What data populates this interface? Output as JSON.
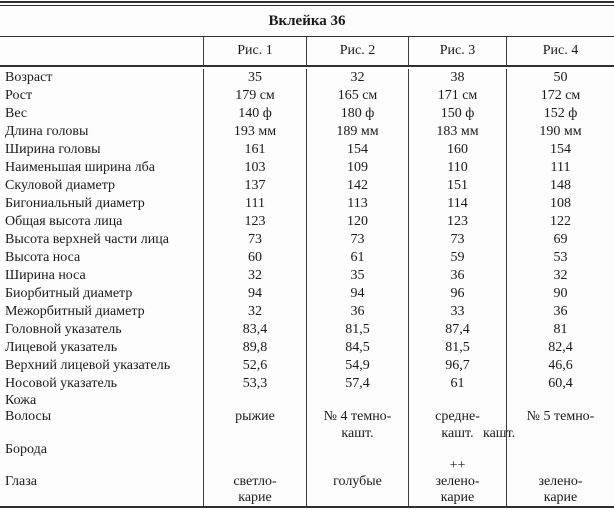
{
  "title": "Вклейка 36",
  "colors": {
    "rule": "#2f2f2f",
    "text": "#1a1a1a",
    "background": "#fdfdfd"
  },
  "table": {
    "column_headers": [
      "Рис. 1",
      "Рис. 2",
      "Рис. 3",
      "Рис. 4"
    ],
    "rows": [
      {
        "label": "Возраст",
        "values": [
          "35",
          "32",
          "38",
          "50"
        ]
      },
      {
        "label": "Рост",
        "values": [
          "179 см",
          "165 см",
          "171 см",
          "172 см"
        ]
      },
      {
        "label": "Вес",
        "values": [
          "140 ф",
          "180 ф",
          "150 ф",
          "152 ф"
        ]
      },
      {
        "label": "Длина головы",
        "values": [
          "193 мм",
          "189 мм",
          "183 мм",
          "190 мм"
        ]
      },
      {
        "label": "Ширина головы",
        "values": [
          "161",
          "154",
          "160",
          "154"
        ]
      },
      {
        "label": "Наименьшая ширина лба",
        "values": [
          "103",
          "109",
          "110",
          "111"
        ]
      },
      {
        "label": "Скуловой диаметр",
        "values": [
          "137",
          "142",
          "151",
          "148"
        ]
      },
      {
        "label": "Бигониальный диаметр",
        "values": [
          "111",
          "113",
          "114",
          "108"
        ]
      },
      {
        "label": "Общая высота лица",
        "values": [
          "123",
          "120",
          "123",
          "122"
        ]
      },
      {
        "label": "Высота верхней части лица",
        "values": [
          "73",
          "73",
          "73",
          "69"
        ]
      },
      {
        "label": "Высота носа",
        "values": [
          "60",
          "61",
          "59",
          "53"
        ]
      },
      {
        "label": "Ширина носа",
        "values": [
          "32",
          "35",
          "36",
          "32"
        ]
      },
      {
        "label": "Биорбитный диаметр",
        "values": [
          "94",
          "94",
          "96",
          "90"
        ]
      },
      {
        "label": "Межорбитный диаметр",
        "values": [
          "32",
          "36",
          "33",
          "36"
        ]
      },
      {
        "label": "Головной указатель",
        "values": [
          "83,4",
          "81,5",
          "87,4",
          "81"
        ]
      },
      {
        "label": "Лицевой указатель",
        "values": [
          "89,8",
          "84,5",
          "81,5",
          "82,4"
        ]
      },
      {
        "label": "Верхний лицевой указатель",
        "values": [
          "52,6",
          "54,9",
          "96,7",
          "46,6"
        ]
      },
      {
        "label": "Носовой указатель",
        "values": [
          "53,3",
          "57,4",
          "61",
          "60,4"
        ]
      },
      {
        "id": "skin",
        "label": "Кожа",
        "values": [
          "",
          "",
          "",
          ""
        ]
      },
      {
        "id": "hair",
        "label": "Волосы",
        "values": [
          [
            "рыжие",
            ""
          ],
          [
            "№ 4 темно-",
            "кашт."
          ],
          [
            "средне-",
            "кашт."
          ],
          [
            "№ 5 темно-",
            "кашт."
          ]
        ]
      },
      {
        "id": "beard",
        "label": "Борода",
        "values": [
          "",
          "",
          "",
          ""
        ]
      },
      {
        "id": "eyes",
        "label": "Глаза",
        "values": [
          [
            "",
            "светло-",
            "карие"
          ],
          [
            "",
            "голубые",
            ""
          ],
          [
            "++",
            "зелено-",
            "карие"
          ],
          [
            "",
            "зелено-",
            "карие"
          ]
        ]
      }
    ]
  }
}
